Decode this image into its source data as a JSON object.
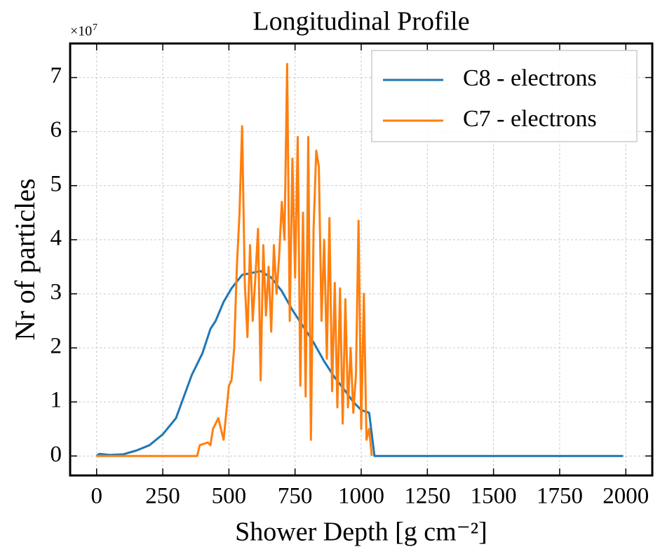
{
  "chart_data": {
    "type": "line",
    "title": "Longitudinal Profile",
    "xlabel": "Shower Depth [g cm⁻²]",
    "ylabel": "Nr of particles",
    "y_scale_label": {
      "base": "×10",
      "exponent": "7"
    },
    "xlim": [
      -100,
      2100
    ],
    "ylim": [
      -0.36,
      7.63
    ],
    "xticks": [
      0,
      250,
      500,
      750,
      1000,
      1250,
      1500,
      1750,
      2000
    ],
    "yticks": [
      0,
      1,
      2,
      3,
      4,
      5,
      6,
      7
    ],
    "grid": true,
    "legend": "upper right",
    "series": [
      {
        "name": "C8 - electrons",
        "color": "#1f77b4",
        "x": [
          0,
          10,
          50,
          100,
          150,
          200,
          250,
          300,
          330,
          360,
          400,
          430,
          450,
          480,
          510,
          550,
          580,
          620,
          660,
          700,
          740,
          780,
          820,
          860,
          900,
          940,
          970,
          1000,
          1030,
          1050,
          1990
        ],
        "values": [
          0,
          0.04,
          0.02,
          0.03,
          0.1,
          0.2,
          0.4,
          0.7,
          1.1,
          1.5,
          1.9,
          2.35,
          2.5,
          2.85,
          3.1,
          3.35,
          3.38,
          3.42,
          3.3,
          3.05,
          2.7,
          2.4,
          2.1,
          1.75,
          1.45,
          1.2,
          1.0,
          0.85,
          0.8,
          0,
          0
        ]
      },
      {
        "name": "C7 - electrons",
        "color": "#ff7f0e",
        "x": [
          0,
          380,
          390,
          420,
          430,
          440,
          460,
          480,
          500,
          510,
          520,
          530,
          540,
          550,
          560,
          570,
          580,
          590,
          600,
          610,
          620,
          630,
          640,
          650,
          660,
          670,
          680,
          690,
          700,
          710,
          720,
          730,
          740,
          750,
          760,
          770,
          780,
          790,
          800,
          810,
          820,
          830,
          840,
          850,
          860,
          870,
          880,
          890,
          900,
          910,
          920,
          930,
          940,
          950,
          960,
          970,
          980,
          990,
          1000,
          1010,
          1020,
          1030,
          1040
        ],
        "values": [
          0,
          0,
          0.2,
          0.25,
          0.2,
          0.5,
          0.7,
          0.3,
          1.3,
          1.4,
          2.0,
          3.5,
          4.5,
          6.1,
          3.2,
          2.2,
          3.9,
          2.5,
          3.3,
          4.2,
          1.4,
          3.9,
          2.6,
          3.5,
          2.3,
          3.9,
          3.0,
          3.7,
          4.7,
          4.0,
          7.25,
          2.5,
          5.5,
          3.3,
          5.9,
          1.3,
          4.5,
          1.1,
          5.9,
          0.3,
          4.2,
          5.65,
          5.35,
          2.5,
          4.0,
          1.8,
          4.4,
          1.2,
          3.2,
          0.9,
          3.1,
          0.6,
          2.9,
          0.9,
          2.0,
          0.8,
          1.5,
          4.35,
          0.5,
          3.0,
          0.3,
          0.5,
          0
        ]
      }
    ]
  }
}
